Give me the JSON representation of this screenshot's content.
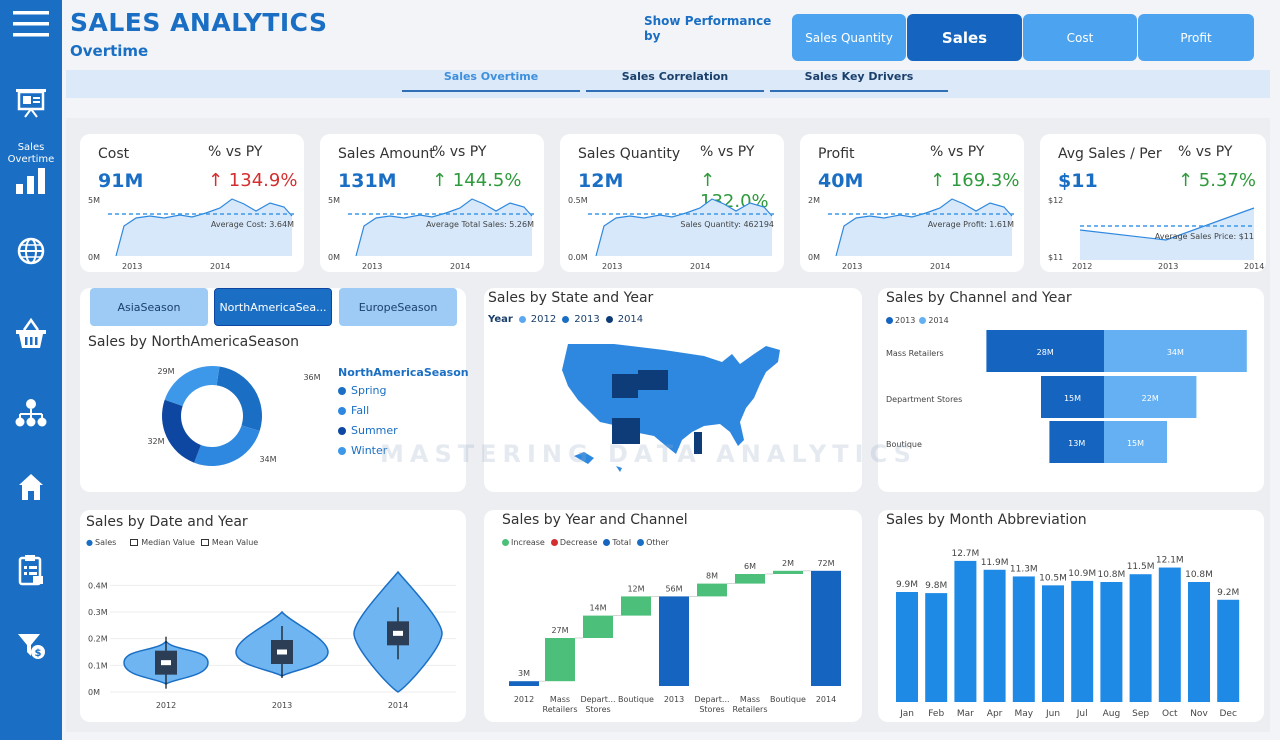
{
  "header": {
    "title": "SALES ANALYTICS",
    "subtitle": "Overtime",
    "show_performance": "Show Performance by",
    "metric_buttons": [
      "Sales Quantity",
      "Sales",
      "Cost",
      "Profit"
    ],
    "active_metric": "Sales",
    "tabs": [
      "Sales Overtime",
      "Sales Correlation",
      "Sales Key Drivers"
    ],
    "active_tab": "Sales Overtime"
  },
  "sidebar": {
    "items": [
      {
        "icon": "menu-icon"
      },
      {
        "icon": "presentation-icon"
      },
      {
        "icon": "bar-chart-icon",
        "label": "Sales Overtime"
      },
      {
        "icon": "globe-icon"
      },
      {
        "icon": "basket-icon"
      },
      {
        "icon": "hierarchy-icon"
      },
      {
        "icon": "home-icon"
      },
      {
        "icon": "clipboard-icon"
      },
      {
        "icon": "filter-money-icon"
      }
    ]
  },
  "kpis": [
    {
      "name": "Cost",
      "value": "91M",
      "py_label": "% vs PY",
      "pct": "↑ 134.9%",
      "pct_color": "#d32f2f",
      "ref": "Average Cost: 3.64M",
      "y_top": "5M",
      "y_bottom": "0M",
      "x": [
        "2013",
        "2014"
      ]
    },
    {
      "name": "Sales Amount",
      "value": "131M",
      "py_label": "% vs PY",
      "pct": "↑ 144.5%",
      "pct_color": "#2e9a3b",
      "ref": "Average Total Sales: 5.26M",
      "y_top": "5M",
      "y_bottom": "0M",
      "x": [
        "2013",
        "2014"
      ]
    },
    {
      "name": "Sales Quantity",
      "value": "12M",
      "py_label": "% vs PY",
      "pct": "↑ 132.0%",
      "pct_color": "#2e9a3b",
      "ref": "Sales Quantity: 462194",
      "y_top": "0.5M",
      "y_bottom": "0.0M",
      "x": [
        "2013",
        "2014"
      ]
    },
    {
      "name": "Profit",
      "value": "40M",
      "py_label": "% vs PY",
      "pct": "↑ 169.3%",
      "pct_color": "#2e9a3b",
      "ref": "Average Profit: 1.61M",
      "y_top": "2M",
      "y_bottom": "0M",
      "x": [
        "2013",
        "2014"
      ]
    },
    {
      "name": "Avg Sales / Per",
      "value": "$11",
      "py_label": "% vs PY",
      "pct": "↑ 5.37%",
      "pct_color": "#2e9a3b",
      "ref": "Average Sales Price: $11",
      "y_top": "$12",
      "y_bottom": "$11",
      "x": [
        "2012",
        "2013",
        "2014"
      ]
    }
  ],
  "season": {
    "buttons": [
      "AsiaSeason",
      "NorthAmericaSea...",
      "EuropeSeason"
    ],
    "active": "NorthAmericaSea...",
    "title": "Sales by NorthAmericaSeason",
    "legend_title": "NorthAmericaSeason",
    "legend": [
      "Spring",
      "Fall",
      "Summer",
      "Winter"
    ],
    "colors": [
      "#1a6fc4",
      "#2f88e0",
      "#0d47a1",
      "#3d98ea"
    ]
  },
  "state_map": {
    "title": "Sales by State and Year",
    "legend_label": "Year",
    "years": [
      "2012",
      "2013",
      "2014"
    ],
    "colors": [
      "#5ba8f0",
      "#1a6fc4",
      "#0d3c78"
    ]
  },
  "watermark": "MASTERING DATA ANALYTICS",
  "chart_data": [
    {
      "type": "area",
      "title": "Cost",
      "x": [
        "2013",
        "2014"
      ],
      "ylim": [
        0,
        5
      ],
      "reference": "Average Cost: 3.64M"
    },
    {
      "type": "pie",
      "title": "Sales by NorthAmericaSeason",
      "categories": [
        "Spring",
        "Fall",
        "Summer",
        "Winter"
      ],
      "values": [
        36,
        34,
        32,
        29
      ],
      "labels": [
        "36M",
        "34M",
        "32M",
        "29M"
      ]
    },
    {
      "type": "bar",
      "title": "Sales by Channel and Year",
      "categories": [
        "Mass Retailers",
        "Department Stores",
        "Boutique"
      ],
      "series": [
        {
          "name": "2013",
          "values": [
            28,
            15,
            13
          ],
          "labels": [
            "28M",
            "15M",
            "13M"
          ],
          "color": "#1565c0"
        },
        {
          "name": "2014",
          "values": [
            34,
            22,
            15
          ],
          "labels": [
            "34M",
            "22M",
            "15M"
          ],
          "color": "#64b0f2"
        }
      ]
    },
    {
      "type": "scatter",
      "title": "Sales by Date and Year",
      "legend": [
        "Sales",
        "Median Value",
        "Mean Value"
      ],
      "categories": [
        "2012",
        "2013",
        "2014"
      ],
      "y_ticks": [
        "0M",
        "0.1M",
        "0.2M",
        "0.3M",
        "0.4M"
      ],
      "medians": [
        0.11,
        0.15,
        0.22
      ],
      "ylim": [
        0,
        0.45
      ]
    },
    {
      "type": "bar",
      "title": "Sales by Year and Channel",
      "legend": [
        "Increase",
        "Decrease",
        "Total",
        "Other"
      ],
      "legend_colors": [
        "#4cbf7a",
        "#d32f2f",
        "#1565c0",
        "#1a6fc4"
      ],
      "categories": [
        "2012",
        "Mass Retailers",
        "Depart... Stores",
        "Boutique",
        "2013",
        "Depart... Stores",
        "Mass Retailers",
        "Boutique",
        "2014"
      ],
      "values": [
        3,
        27,
        14,
        12,
        56,
        8,
        6,
        2,
        72
      ],
      "labels": [
        "3M",
        "27M",
        "14M",
        "12M",
        "56M",
        "8M",
        "6M",
        "2M",
        "72M"
      ],
      "kinds": [
        "total",
        "increase",
        "increase",
        "increase",
        "total",
        "increase",
        "increase",
        "increase",
        "total"
      ]
    },
    {
      "type": "bar",
      "title": "Sales by Month Abbreviation",
      "categories": [
        "Jan",
        "Feb",
        "Mar",
        "Apr",
        "May",
        "Jun",
        "Jul",
        "Aug",
        "Sep",
        "Oct",
        "Nov",
        "Dec"
      ],
      "values": [
        9.9,
        9.8,
        12.7,
        11.9,
        11.3,
        10.5,
        10.9,
        10.8,
        11.5,
        12.1,
        10.8,
        9.2
      ],
      "labels": [
        "9.9M",
        "9.8M",
        "12.7M",
        "11.9M",
        "11.3M",
        "10.5M",
        "10.9M",
        "10.8M",
        "11.5M",
        "12.1M",
        "10.8M",
        "9.2M"
      ],
      "color": "#1f8ae6"
    }
  ]
}
